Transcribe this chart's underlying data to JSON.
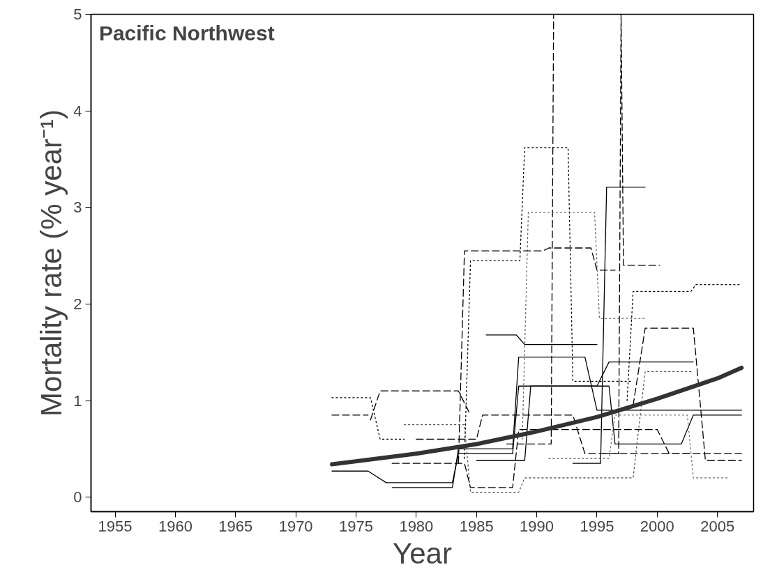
{
  "chart_data": {
    "type": "line",
    "title": "Pacific Northwest",
    "xlabel": "Year",
    "ylabel": "Mortality rate (% year⁻¹)",
    "xlim": [
      1953,
      2008
    ],
    "ylim": [
      -0.15,
      5
    ],
    "xticks": [
      1955,
      1960,
      1965,
      1970,
      1975,
      1980,
      1985,
      1990,
      1995,
      2000,
      2005
    ],
    "yticks": [
      0,
      1,
      2,
      3,
      4,
      5
    ],
    "grid": false,
    "series": [
      {
        "color": "#000000",
        "line_style": "dashed",
        "x": [
          1987.5,
          1991.2,
          1991.4
        ],
        "values": [
          0.55,
          0.55,
          5
        ]
      },
      {
        "color": "#000000",
        "line_style": "dashed",
        "x": [
          1995.5,
          1996.8,
          1997.0,
          1997.2,
          2000.2
        ],
        "values": [
          0.45,
          0.45,
          5,
          2.4,
          2.4
        ]
      },
      {
        "color": "#000000",
        "line_style": "dotted",
        "x": [
          1984,
          1984.5,
          1988.6,
          1989,
          1992.6,
          1993,
          1998
        ],
        "values": [
          0.4,
          2.45,
          2.45,
          3.62,
          3.62,
          1.2,
          1.2
        ]
      },
      {
        "color": "#666666",
        "line_style": "dotted",
        "x": [
          1988.8,
          1989.3,
          1994.8,
          1995.2,
          1999
        ],
        "values": [
          0.6,
          2.95,
          2.95,
          1.85,
          1.85
        ]
      },
      {
        "color": "#000000",
        "line_style": "solid",
        "x": [
          1993,
          1995.3,
          1995.8,
          1999
        ],
        "values": [
          0.35,
          0.35,
          3.21,
          3.21
        ]
      },
      {
        "color": "#000000",
        "line_style": "dashed",
        "x": [
          1983.5,
          1984,
          1990.5,
          1991,
          1994.5,
          1995,
          1996.5
        ],
        "values": [
          0.35,
          2.55,
          2.55,
          2.58,
          2.58,
          2.35,
          2.35
        ]
      },
      {
        "color": "#000000",
        "line_style": "dotted",
        "x": [
          1997.5,
          1998,
          2002.8,
          2003.2,
          2007
        ],
        "values": [
          1.0,
          2.13,
          2.13,
          2.2,
          2.2
        ]
      },
      {
        "color": "#000000",
        "line_style": "solid",
        "x": [
          1985.8,
          1988.3,
          1989,
          1995
        ],
        "values": [
          1.68,
          1.68,
          1.58,
          1.58
        ]
      },
      {
        "color": "#000000",
        "line_style": "dashed",
        "x": [
          1976.2,
          1977,
          1983.5,
          1984.5
        ],
        "values": [
          0.8,
          1.1,
          1.1,
          0.85
        ]
      },
      {
        "color": "#000000",
        "line_style": "dotted",
        "x": [
          1973,
          1976.2,
          1977,
          1979
        ],
        "values": [
          1.03,
          1.03,
          0.6,
          0.6
        ]
      },
      {
        "color": "#000000",
        "line_style": "solid",
        "x": [
          1973,
          1976,
          1977.5,
          1983,
          1983.5,
          1988,
          1988.5,
          1995,
          1996,
          2003
        ],
        "values": [
          0.27,
          0.27,
          0.15,
          0.15,
          0.45,
          0.45,
          1.15,
          1.15,
          1.4,
          1.4
        ]
      },
      {
        "color": "#000000",
        "line_style": "dashed",
        "x": [
          1973,
          1976
        ],
        "values": [
          0.85,
          0.85
        ]
      },
      {
        "color": "#000000",
        "line_style": "solid",
        "x": [
          1978,
          1983,
          1983.5,
          1988,
          1988.5,
          1994,
          1995,
          2007
        ],
        "values": [
          0.1,
          0.1,
          0.5,
          0.5,
          1.45,
          1.45,
          0.9,
          0.9
        ]
      },
      {
        "color": "#000000",
        "line_style": "dashed",
        "x": [
          1978,
          1984,
          1984.5,
          1988,
          1988.5,
          2000,
          2001,
          2007
        ],
        "values": [
          0.35,
          0.35,
          0.1,
          0.1,
          0.7,
          0.7,
          0.45,
          0.45
        ]
      },
      {
        "color": "#555555",
        "line_style": "dotted",
        "x": [
          1979,
          1984,
          1984.5,
          1988.5,
          1989,
          1998,
          1999,
          2003
        ],
        "values": [
          0.75,
          0.75,
          0.05,
          0.05,
          0.2,
          0.2,
          1.3,
          1.3
        ]
      },
      {
        "color": "#000000",
        "line_style": "dashed",
        "x": [
          1998,
          1999,
          2003,
          2004,
          2007
        ],
        "values": [
          0.95,
          1.75,
          1.75,
          0.38,
          0.38
        ]
      },
      {
        "color": "#000000",
        "line_style": "solid",
        "x": [
          1985,
          1989,
          1989.5,
          1996,
          1996.5,
          2002,
          2003,
          2007
        ],
        "values": [
          0.38,
          0.38,
          1.15,
          1.15,
          0.55,
          0.55,
          0.85,
          0.85
        ]
      },
      {
        "color": "#777777",
        "line_style": "dotted",
        "x": [
          1991,
          1996,
          1996.5,
          2002.5,
          2003,
          2006
        ],
        "values": [
          0.4,
          0.4,
          0.85,
          0.85,
          0.2,
          0.2
        ]
      },
      {
        "color": "#000000",
        "line_style": "dashed",
        "x": [
          1980,
          1985,
          1985.5,
          1993,
          1994,
          2003
        ],
        "values": [
          0.6,
          0.6,
          0.85,
          0.85,
          0.45,
          0.45
        ]
      },
      {
        "color": "#333333",
        "line_style": "solid",
        "x": [
          1973,
          1980,
          1985,
          1990,
          1995,
          2000,
          2005,
          2007
        ],
        "values": [
          0.34,
          0.45,
          0.55,
          0.68,
          0.83,
          1.02,
          1.23,
          1.34
        ]
      }
    ]
  }
}
